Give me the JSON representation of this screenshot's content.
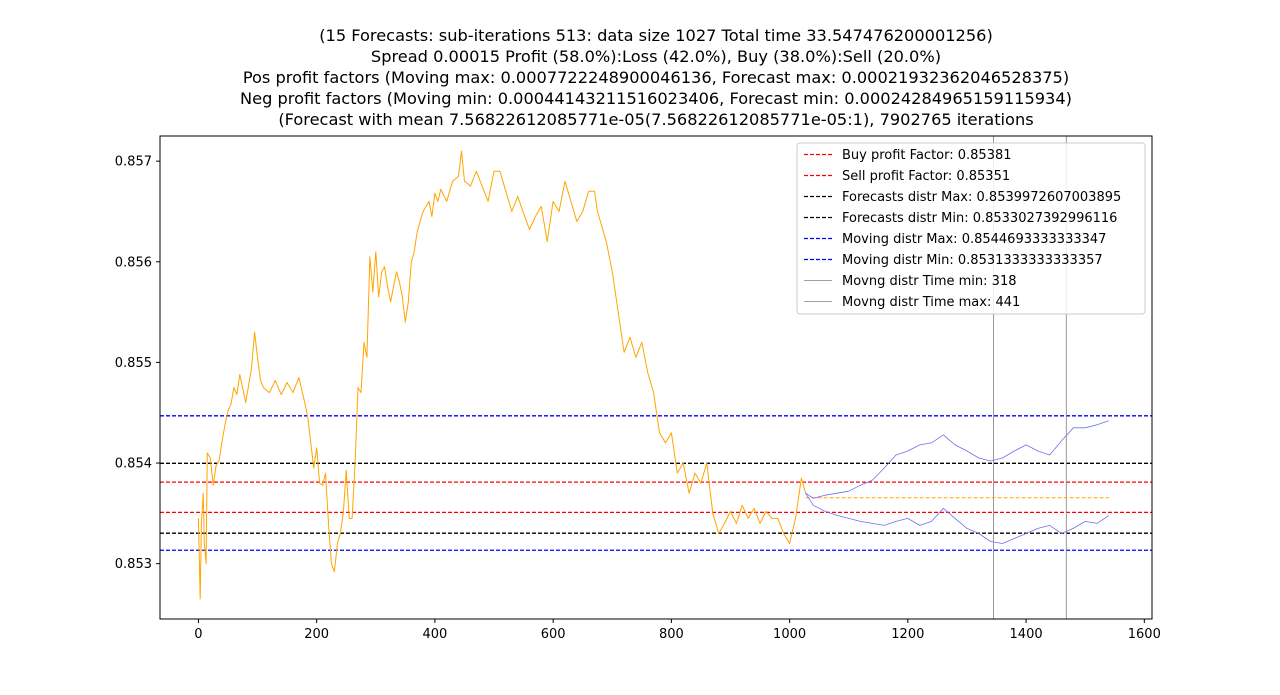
{
  "title_lines": [
    "(15 Forecasts: sub-iterations 513: data size 1027 Total time 33.547476200001256)",
    "Spread 0.00015 Profit (58.0%):Loss (42.0%), Buy (38.0%):Sell (20.0%)",
    "Pos profit factors (Moving max: 0.0007722248900046136, Forecast max: 0.00021932362046528375)",
    "Neg profit factors (Moving min: 0.00044143211516023406, Forecast min: 0.00024284965159115934)",
    "(Forecast with mean 7.56822612085771e-05(7.56822612085771e-05:1), 7902765 iterations"
  ],
  "chart_data": {
    "type": "line",
    "xlim": [
      -65,
      1613
    ],
    "ylim": [
      0.85245,
      0.85725
    ],
    "x_ticks": [
      0,
      200,
      400,
      600,
      800,
      1000,
      1200,
      1400,
      1600
    ],
    "y_ticks": [
      0.853,
      0.854,
      0.855,
      0.856,
      0.857
    ],
    "grid": false,
    "legend_position": "upper right",
    "legend": [
      {
        "label": "Buy profit Factor: 0.85381",
        "color": "#ff0000",
        "style": "dashed"
      },
      {
        "label": "Sell profit Factor: 0.85351",
        "color": "#ff0000",
        "style": "dashed"
      },
      {
        "label": "Forecasts distr Max: 0.8539972607003895",
        "color": "#000000",
        "style": "dashed"
      },
      {
        "label": "Forecasts distr Min: 0.8533027392996116",
        "color": "#000000",
        "style": "dashed"
      },
      {
        "label": "Moving distr Max: 0.8544693333333347",
        "color": "#0000ff",
        "style": "dashed"
      },
      {
        "label": "Moving distr Min: 0.8531333333333357",
        "color": "#0000ff",
        "style": "dashed"
      },
      {
        "label": "Movng distr Time min: 318",
        "color": "#808080",
        "style": "solid"
      },
      {
        "label": "Movng distr Time max: 441",
        "color": "#808080",
        "style": "solid"
      }
    ],
    "hlines": [
      {
        "y": 0.85381,
        "color": "#ff0000",
        "style": "dashed"
      },
      {
        "y": 0.85351,
        "color": "#ff0000",
        "style": "dashed"
      },
      {
        "y": 0.8539972607003895,
        "color": "#000000",
        "style": "dashed"
      },
      {
        "y": 0.8533027392996116,
        "color": "#000000",
        "style": "dashed"
      },
      {
        "y": 0.8544693333333347,
        "color": "#0000ff",
        "style": "dashed"
      },
      {
        "y": 0.8531333333333357,
        "color": "#0000ff",
        "style": "dashed"
      }
    ],
    "vlines": [
      {
        "x": 1345,
        "color": "#808080"
      },
      {
        "x": 1468,
        "color": "#808080"
      }
    ],
    "mean_forecast": {
      "x": [
        1027,
        1540
      ],
      "y": 0.853655,
      "color": "#ffa500",
      "style": "dashed"
    },
    "series": [
      {
        "color": "#ffa500",
        "x": [
          0,
          3,
          5,
          8,
          10,
          13,
          15,
          20,
          25,
          30,
          35,
          40,
          45,
          50,
          55,
          60,
          65,
          70,
          80,
          90,
          95,
          100,
          105,
          110,
          120,
          130,
          140,
          150,
          160,
          170,
          175,
          180,
          185,
          190,
          195,
          200,
          205,
          210,
          215,
          220,
          225,
          230,
          235,
          240,
          245,
          250,
          255,
          260,
          265,
          270,
          275,
          280,
          285,
          290,
          295,
          300,
          305,
          310,
          315,
          320,
          325,
          330,
          335,
          340,
          345,
          350,
          355,
          360,
          365,
          370,
          380,
          390,
          395,
          400,
          405,
          410,
          420,
          430,
          440,
          445,
          450,
          455,
          460,
          470,
          480,
          490,
          500,
          510,
          520,
          530,
          540,
          550,
          560,
          570,
          580,
          590,
          600,
          610,
          620,
          630,
          640,
          650,
          660,
          670,
          675,
          680,
          690,
          700,
          710,
          720,
          730,
          740,
          750,
          760,
          770,
          780,
          790,
          800,
          810,
          820,
          830,
          840,
          850,
          860,
          870,
          880,
          890,
          900,
          910,
          920,
          930,
          940,
          950,
          960,
          970,
          980,
          990,
          1000,
          1010,
          1020,
          1027
        ],
        "y": [
          0.85345,
          0.85265,
          0.8534,
          0.8537,
          0.8532,
          0.853,
          0.8541,
          0.85405,
          0.85378,
          0.85398,
          0.85402,
          0.85422,
          0.85438,
          0.85452,
          0.85458,
          0.85475,
          0.85468,
          0.85488,
          0.8546,
          0.85495,
          0.8553,
          0.85505,
          0.85482,
          0.85475,
          0.8547,
          0.85482,
          0.85468,
          0.8548,
          0.8547,
          0.85485,
          0.85472,
          0.8546,
          0.85445,
          0.8542,
          0.85395,
          0.85415,
          0.8538,
          0.85378,
          0.8539,
          0.8534,
          0.853,
          0.85292,
          0.8532,
          0.8533,
          0.8535,
          0.85393,
          0.85345,
          0.85345,
          0.854,
          0.85475,
          0.8547,
          0.8552,
          0.85505,
          0.85605,
          0.8557,
          0.8561,
          0.85565,
          0.8559,
          0.85595,
          0.85575,
          0.8556,
          0.85575,
          0.8559,
          0.8558,
          0.85565,
          0.8554,
          0.8556,
          0.856,
          0.8561,
          0.8563,
          0.8565,
          0.8566,
          0.85645,
          0.85668,
          0.8566,
          0.85672,
          0.8566,
          0.8568,
          0.85685,
          0.8571,
          0.8568,
          0.85678,
          0.85675,
          0.8569,
          0.85675,
          0.8566,
          0.8569,
          0.8569,
          0.8567,
          0.8565,
          0.85665,
          0.85648,
          0.85632,
          0.85645,
          0.85655,
          0.8562,
          0.8566,
          0.8565,
          0.8568,
          0.8566,
          0.8564,
          0.8565,
          0.8567,
          0.8567,
          0.8565,
          0.8564,
          0.8562,
          0.8559,
          0.8555,
          0.8551,
          0.85525,
          0.85505,
          0.8552,
          0.8549,
          0.8547,
          0.8543,
          0.8542,
          0.8543,
          0.8539,
          0.854,
          0.8537,
          0.8539,
          0.8538,
          0.854,
          0.8535,
          0.8533,
          0.8534,
          0.85352,
          0.8534,
          0.85358,
          0.85345,
          0.85355,
          0.8534,
          0.85352,
          0.85345,
          0.85345,
          0.8533,
          0.8532,
          0.85345,
          0.85385,
          0.8537
        ]
      },
      {
        "color": "#7070ee",
        "x": [
          1027,
          1040,
          1060,
          1080,
          1100,
          1120,
          1140,
          1160,
          1180,
          1200,
          1220,
          1240,
          1260,
          1280,
          1300,
          1320,
          1340,
          1360,
          1380,
          1400,
          1420,
          1440,
          1460,
          1480,
          1500,
          1520,
          1540
        ],
        "y": [
          0.8537,
          0.85365,
          0.85368,
          0.8537,
          0.85372,
          0.85378,
          0.85383,
          0.85395,
          0.85408,
          0.85412,
          0.85418,
          0.8542,
          0.85428,
          0.85418,
          0.85412,
          0.85405,
          0.85402,
          0.85405,
          0.85412,
          0.85418,
          0.85412,
          0.85408,
          0.85422,
          0.85435,
          0.85435,
          0.85438,
          0.85442
        ]
      },
      {
        "color": "#7070ee",
        "x": [
          1027,
          1040,
          1060,
          1080,
          1100,
          1120,
          1140,
          1160,
          1180,
          1200,
          1220,
          1240,
          1260,
          1280,
          1300,
          1320,
          1340,
          1360,
          1380,
          1400,
          1420,
          1440,
          1460,
          1480,
          1500,
          1520,
          1540
        ],
        "y": [
          0.8537,
          0.85358,
          0.85352,
          0.85348,
          0.85345,
          0.85342,
          0.8534,
          0.85338,
          0.85342,
          0.85345,
          0.85338,
          0.85342,
          0.85355,
          0.85345,
          0.85335,
          0.8533,
          0.85322,
          0.8532,
          0.85325,
          0.8533,
          0.85335,
          0.85338,
          0.8533,
          0.85335,
          0.85342,
          0.8534,
          0.85348
        ]
      }
    ]
  }
}
